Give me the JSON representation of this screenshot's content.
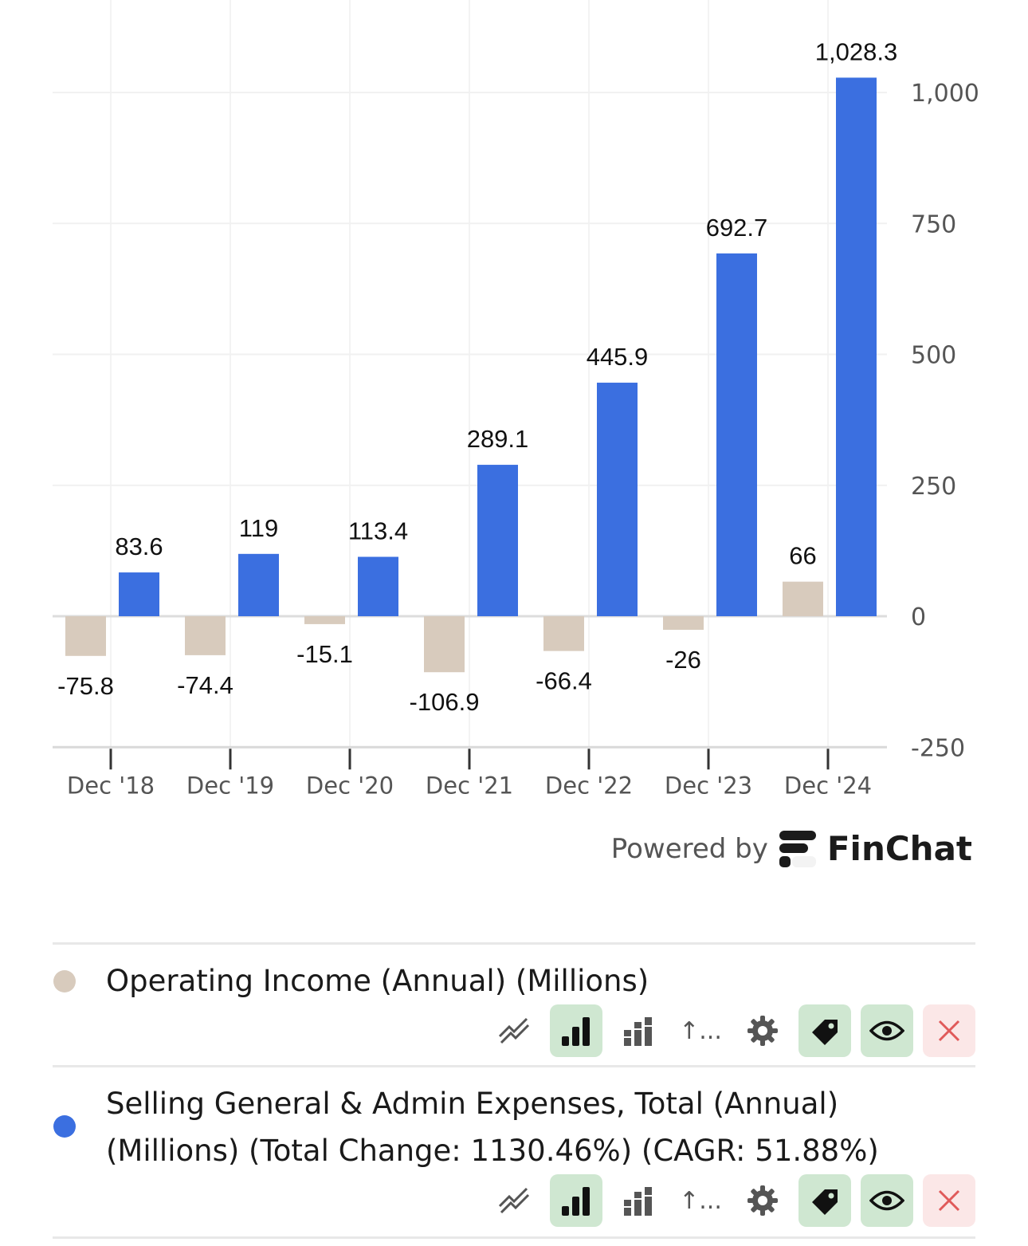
{
  "chart_data": {
    "type": "bar",
    "categories": [
      "Dec '18",
      "Dec '19",
      "Dec '20",
      "Dec '21",
      "Dec '22",
      "Dec '23",
      "Dec '24"
    ],
    "series": [
      {
        "name": "Operating Income (Annual) (Millions)",
        "color": "#d8cbbd",
        "values": [
          -75.8,
          -74.4,
          -15.1,
          -106.9,
          -66.4,
          -26,
          66
        ],
        "labels": [
          "-75.8",
          "-74.4",
          "-15.1",
          "-106.9",
          "-66.4",
          "-26",
          "66"
        ]
      },
      {
        "name": "Selling General & Admin Expenses, Total (Annual) (Millions)",
        "color": "#3b6fe0",
        "values": [
          83.6,
          119,
          113.4,
          289.1,
          445.9,
          692.7,
          1028.3
        ],
        "labels": [
          "83.6",
          "119",
          "113.4",
          "289.1",
          "445.9",
          "692.7",
          "1,028.3"
        ]
      }
    ],
    "yticks": [
      -250,
      0,
      250,
      500,
      750,
      1000
    ],
    "ytick_labels": [
      "-250",
      "0",
      "250",
      "500",
      "750",
      "1,000"
    ],
    "ylim": [
      -250,
      1050
    ],
    "grid": true,
    "y_axis_side": "right"
  },
  "footer": {
    "powered_by": "Powered by",
    "brand": "FinChat"
  },
  "legend": [
    {
      "label": "Operating Income (Annual) (Millions)",
      "color": "#d8cbbd",
      "tools": {
        "more_label": "↑..."
      }
    },
    {
      "label": "Selling General & Admin Expenses, Total (Annual) (Millions) (Total Change: 1130.46%) (CAGR: 51.88%)",
      "color": "#3b6fe0",
      "tools": {
        "more_label": "↑..."
      }
    }
  ],
  "icons": [
    "line-chart-icon",
    "bar-chart-icon",
    "stacked-bar-icon",
    "gear-icon",
    "tag-icon",
    "eye-icon",
    "close-icon"
  ]
}
